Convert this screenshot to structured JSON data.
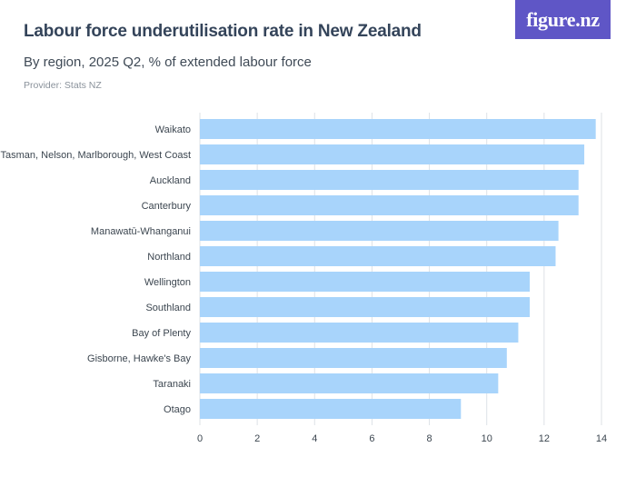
{
  "header": {
    "title": "Labour force underutilisation rate in New Zealand",
    "subtitle": "By region, 2025 Q2, % of extended labour force",
    "provider": "Provider: Stats NZ",
    "logo_text": "figure.nz"
  },
  "colors": {
    "bar": "#a8d4fb",
    "grid": "#dde2e6",
    "axis": "#3c4650",
    "logo_bg": "#5f56c6"
  },
  "chart_data": {
    "type": "bar",
    "orientation": "horizontal",
    "title": "Labour force underutilisation rate in New Zealand",
    "subtitle": "By region, 2025 Q2, % of extended labour force",
    "xlabel": "",
    "ylabel": "",
    "xlim": [
      0,
      14
    ],
    "xticks": [
      0,
      2,
      4,
      6,
      8,
      10,
      12,
      14
    ],
    "grid": true,
    "categories": [
      "Waikato",
      "Tasman, Nelson, Marlborough, West Coast",
      "Auckland",
      "Canterbury",
      "Manawatū-Whanganui",
      "Northland",
      "Wellington",
      "Southland",
      "Bay of Plenty",
      "Gisborne, Hawke's Bay",
      "Taranaki",
      "Otago"
    ],
    "values": [
      13.8,
      13.4,
      13.2,
      13.2,
      12.5,
      12.4,
      11.5,
      11.5,
      11.1,
      10.7,
      10.4,
      9.1
    ]
  }
}
